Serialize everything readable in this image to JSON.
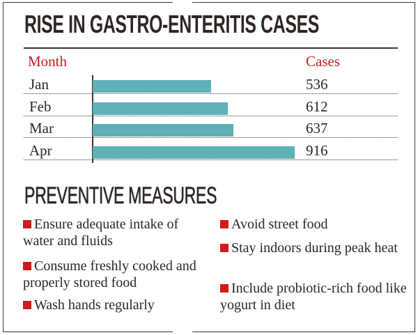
{
  "title": "RISE IN GASTRO-ENTERITIS CASES",
  "chart_data": {
    "type": "bar",
    "orientation": "horizontal",
    "category_header": "Month",
    "value_header": "Cases",
    "categories": [
      "Jan",
      "Feb",
      "Mar",
      "Apr"
    ],
    "values": [
      536,
      612,
      637,
      916
    ],
    "bar_color": "#5fb0b7",
    "grid": false
  },
  "measures": {
    "title": "PREVENTIVE MEASURES",
    "bullet_color": "#d11a1a",
    "items": [
      "Ensure adequate intake of water and fluids",
      "Consume freshly cooked and properly stored food",
      "Wash hands regularly",
      "Avoid street food",
      "Stay indoors during peak heat",
      "Include probiotic-rich food like yogurt in diet"
    ]
  }
}
